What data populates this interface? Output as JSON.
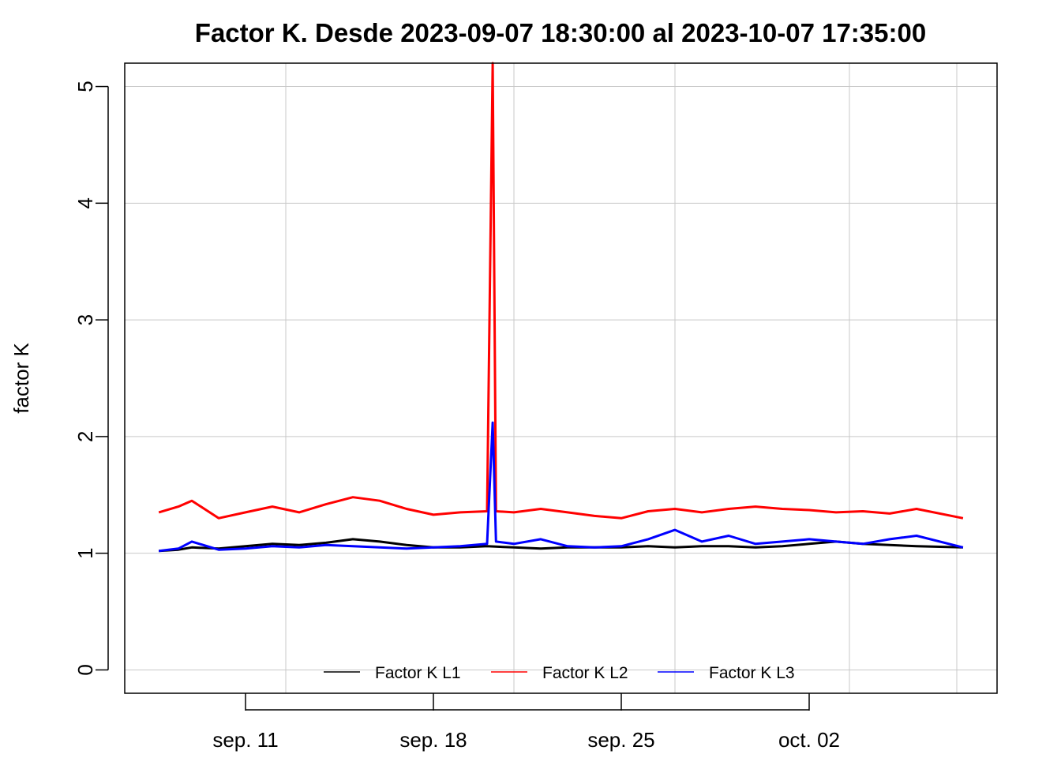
{
  "chart_data": {
    "type": "line",
    "title": "Factor K. Desde  2023-09-07 18:30:00  al  2023-10-07 17:35:00",
    "xlabel": "",
    "ylabel": "factor K",
    "x_range": [
      "2023-09-07 18:30:00",
      "2023-10-07 17:35:00"
    ],
    "xlim": [
      "2023-09-06 12:00:00",
      "2023-10-09 00:00:00"
    ],
    "ylim": [
      -0.2,
      5.2
    ],
    "y_ticks": [
      0,
      1,
      2,
      3,
      4,
      5
    ],
    "x_ticks": [
      {
        "date": "2023-09-11",
        "label": "sep. 11"
      },
      {
        "date": "2023-09-18",
        "label": "sep. 18"
      },
      {
        "date": "2023-09-25",
        "label": "sep. 25"
      },
      {
        "date": "2023-10-02",
        "label": "oct. 02"
      }
    ],
    "grid": true,
    "legend_position": "bottom-center",
    "series": [
      {
        "name": "Factor K L1",
        "color": "#000000",
        "points": [
          [
            "2023-09-07 18:30:00",
            1.02
          ],
          [
            "2023-09-08 12:00:00",
            1.03
          ],
          [
            "2023-09-09 00:00:00",
            1.05
          ],
          [
            "2023-09-10 00:00:00",
            1.04
          ],
          [
            "2023-09-11 00:00:00",
            1.06
          ],
          [
            "2023-09-12 00:00:00",
            1.08
          ],
          [
            "2023-09-13 00:00:00",
            1.07
          ],
          [
            "2023-09-14 00:00:00",
            1.09
          ],
          [
            "2023-09-15 00:00:00",
            1.12
          ],
          [
            "2023-09-16 00:00:00",
            1.1
          ],
          [
            "2023-09-17 00:00:00",
            1.07
          ],
          [
            "2023-09-18 00:00:00",
            1.05
          ],
          [
            "2023-09-19 00:00:00",
            1.05
          ],
          [
            "2023-09-20 00:00:00",
            1.06
          ],
          [
            "2023-09-21 00:00:00",
            1.05
          ],
          [
            "2023-09-22 00:00:00",
            1.04
          ],
          [
            "2023-09-23 00:00:00",
            1.05
          ],
          [
            "2023-09-24 00:00:00",
            1.05
          ],
          [
            "2023-09-25 00:00:00",
            1.05
          ],
          [
            "2023-09-26 00:00:00",
            1.06
          ],
          [
            "2023-09-27 00:00:00",
            1.05
          ],
          [
            "2023-09-28 00:00:00",
            1.06
          ],
          [
            "2023-09-29 00:00:00",
            1.06
          ],
          [
            "2023-09-30 00:00:00",
            1.05
          ],
          [
            "2023-10-01 00:00:00",
            1.06
          ],
          [
            "2023-10-02 00:00:00",
            1.08
          ],
          [
            "2023-10-03 00:00:00",
            1.1
          ],
          [
            "2023-10-04 00:00:00",
            1.08
          ],
          [
            "2023-10-05 00:00:00",
            1.07
          ],
          [
            "2023-10-06 00:00:00",
            1.06
          ],
          [
            "2023-10-07 17:35:00",
            1.05
          ]
        ]
      },
      {
        "name": "Factor K L2",
        "color": "#ff0000",
        "points": [
          [
            "2023-09-07 18:30:00",
            1.35
          ],
          [
            "2023-09-08 12:00:00",
            1.4
          ],
          [
            "2023-09-09 00:00:00",
            1.45
          ],
          [
            "2023-09-10 00:00:00",
            1.3
          ],
          [
            "2023-09-11 00:00:00",
            1.35
          ],
          [
            "2023-09-12 00:00:00",
            1.4
          ],
          [
            "2023-09-13 00:00:00",
            1.35
          ],
          [
            "2023-09-14 00:00:00",
            1.42
          ],
          [
            "2023-09-15 00:00:00",
            1.48
          ],
          [
            "2023-09-16 00:00:00",
            1.45
          ],
          [
            "2023-09-17 00:00:00",
            1.38
          ],
          [
            "2023-09-18 00:00:00",
            1.33
          ],
          [
            "2023-09-19 00:00:00",
            1.35
          ],
          [
            "2023-09-20 00:00:00",
            1.36
          ],
          [
            "2023-09-20 05:00:00",
            5.2
          ],
          [
            "2023-09-20 08:00:00",
            1.36
          ],
          [
            "2023-09-21 00:00:00",
            1.35
          ],
          [
            "2023-09-22 00:00:00",
            1.38
          ],
          [
            "2023-09-23 00:00:00",
            1.35
          ],
          [
            "2023-09-24 00:00:00",
            1.32
          ],
          [
            "2023-09-25 00:00:00",
            1.3
          ],
          [
            "2023-09-26 00:00:00",
            1.36
          ],
          [
            "2023-09-27 00:00:00",
            1.38
          ],
          [
            "2023-09-28 00:00:00",
            1.35
          ],
          [
            "2023-09-29 00:00:00",
            1.38
          ],
          [
            "2023-09-30 00:00:00",
            1.4
          ],
          [
            "2023-10-01 00:00:00",
            1.38
          ],
          [
            "2023-10-02 00:00:00",
            1.37
          ],
          [
            "2023-10-03 00:00:00",
            1.35
          ],
          [
            "2023-10-04 00:00:00",
            1.36
          ],
          [
            "2023-10-05 00:00:00",
            1.34
          ],
          [
            "2023-10-06 00:00:00",
            1.38
          ],
          [
            "2023-10-07 17:35:00",
            1.3
          ]
        ]
      },
      {
        "name": "Factor K L3",
        "color": "#0000ff",
        "points": [
          [
            "2023-09-07 18:30:00",
            1.02
          ],
          [
            "2023-09-08 12:00:00",
            1.04
          ],
          [
            "2023-09-09 00:00:00",
            1.1
          ],
          [
            "2023-09-10 00:00:00",
            1.03
          ],
          [
            "2023-09-11 00:00:00",
            1.04
          ],
          [
            "2023-09-12 00:00:00",
            1.06
          ],
          [
            "2023-09-13 00:00:00",
            1.05
          ],
          [
            "2023-09-14 00:00:00",
            1.07
          ],
          [
            "2023-09-15 00:00:00",
            1.06
          ],
          [
            "2023-09-16 00:00:00",
            1.05
          ],
          [
            "2023-09-17 00:00:00",
            1.04
          ],
          [
            "2023-09-18 00:00:00",
            1.05
          ],
          [
            "2023-09-19 00:00:00",
            1.06
          ],
          [
            "2023-09-20 00:00:00",
            1.08
          ],
          [
            "2023-09-20 05:00:00",
            2.12
          ],
          [
            "2023-09-20 08:00:00",
            1.1
          ],
          [
            "2023-09-21 00:00:00",
            1.08
          ],
          [
            "2023-09-22 00:00:00",
            1.12
          ],
          [
            "2023-09-23 00:00:00",
            1.06
          ],
          [
            "2023-09-24 00:00:00",
            1.05
          ],
          [
            "2023-09-25 00:00:00",
            1.06
          ],
          [
            "2023-09-26 00:00:00",
            1.12
          ],
          [
            "2023-09-27 00:00:00",
            1.2
          ],
          [
            "2023-09-28 00:00:00",
            1.1
          ],
          [
            "2023-09-29 00:00:00",
            1.15
          ],
          [
            "2023-09-30 00:00:00",
            1.08
          ],
          [
            "2023-10-01 00:00:00",
            1.1
          ],
          [
            "2023-10-02 00:00:00",
            1.12
          ],
          [
            "2023-10-03 00:00:00",
            1.1
          ],
          [
            "2023-10-04 00:00:00",
            1.08
          ],
          [
            "2023-10-05 00:00:00",
            1.12
          ],
          [
            "2023-10-06 00:00:00",
            1.15
          ],
          [
            "2023-10-07 17:35:00",
            1.05
          ]
        ]
      }
    ]
  }
}
